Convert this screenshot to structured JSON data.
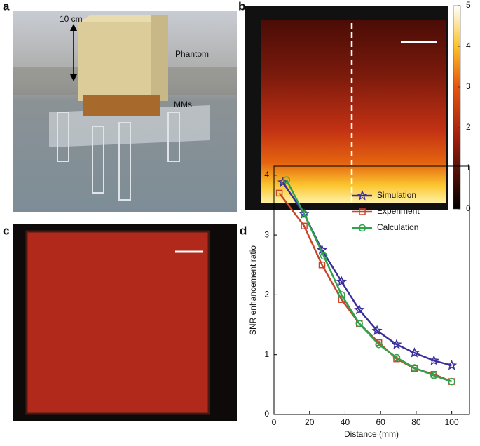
{
  "panels": [
    {
      "label": "a",
      "annotations": [
        "10 cm",
        "Phantom",
        "MMs"
      ]
    },
    {
      "label": "b"
    },
    {
      "label": "c"
    },
    {
      "label": "d"
    }
  ],
  "colorbar": {
    "lim": [
      0,
      5
    ],
    "ticks": [
      0,
      1,
      2,
      3,
      4,
      5
    ]
  },
  "chart_data": {
    "type": "line",
    "xlabel": "Distance (mm)",
    "ylabel": "SNR enhancement ratio",
    "xlim": [
      0,
      110
    ],
    "ylim": [
      0,
      4.15
    ],
    "xticks": [
      0,
      20,
      40,
      60,
      80,
      100
    ],
    "yticks": [
      0,
      1,
      2,
      3,
      4
    ],
    "legend": "upper right",
    "series": [
      {
        "name": "Simulation",
        "color": "#3b2f9c",
        "marker": "star",
        "x": [
          5,
          17,
          27,
          38,
          48,
          58,
          69,
          79,
          90,
          100
        ],
        "values": [
          3.88,
          3.35,
          2.75,
          2.22,
          1.75,
          1.4,
          1.17,
          1.03,
          0.9,
          0.82
        ]
      },
      {
        "name": "Experiment",
        "color": "#c9462b",
        "marker": "square",
        "x": [
          3,
          17,
          27,
          38,
          48,
          59,
          69,
          79,
          90,
          100
        ],
        "values": [
          3.7,
          3.15,
          2.5,
          1.92,
          1.52,
          1.2,
          0.93,
          0.77,
          0.67,
          0.55
        ]
      },
      {
        "name": "Calculation",
        "color": "#2ea24c",
        "marker": "circle",
        "x": [
          7,
          17,
          28,
          38,
          48,
          59,
          69,
          79,
          90,
          100
        ],
        "values": [
          3.92,
          3.35,
          2.65,
          2.0,
          1.52,
          1.17,
          0.95,
          0.78,
          0.65,
          0.55
        ]
      }
    ]
  }
}
